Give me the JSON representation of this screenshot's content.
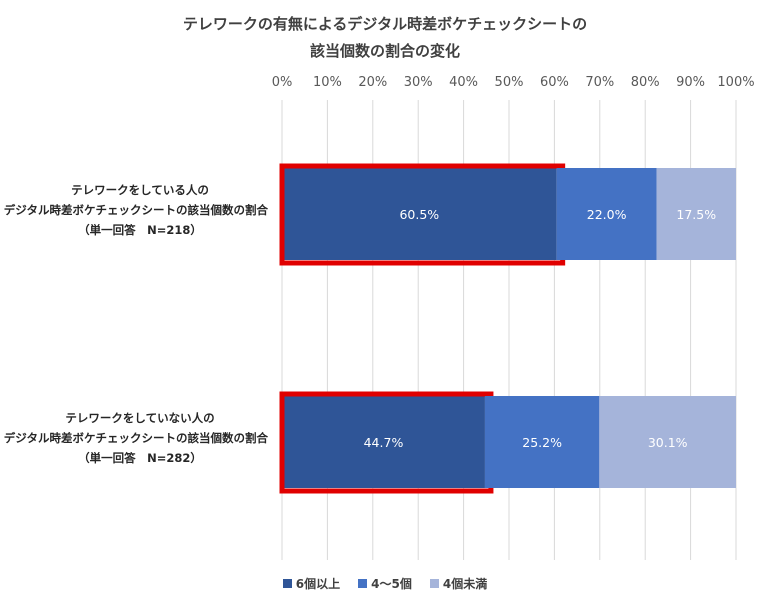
{
  "chart_data": {
    "type": "bar",
    "orientation": "horizontal",
    "stacked": "percent",
    "title_line1": "テレワークの有無によるデジタル時差ボケチェックシートの",
    "title_line2": "該当個数の割合の変化",
    "xlim": [
      0,
      100
    ],
    "x_ticks": [
      "0%",
      "10%",
      "20%",
      "30%",
      "40%",
      "50%",
      "60%",
      "70%",
      "80%",
      "90%",
      "100%"
    ],
    "grid": true,
    "legend_position": "bottom",
    "categories": [
      [
        "テレワークをしている人の",
        "デジタル時差ボケチェックシートの該当個数の割合",
        "（単一回答　N=218）"
      ],
      [
        "テレワークをしていない人の",
        "デジタル時差ボケチェックシートの該当個数の割合",
        "（単一回答　N=282）"
      ]
    ],
    "series": [
      {
        "name": "6個以上",
        "color": "#2f5597",
        "values": [
          60.5,
          44.7
        ],
        "labels": [
          "60.5%",
          "44.7%"
        ]
      },
      {
        "name": "4～5個",
        "color": "#4472c4",
        "values": [
          22.0,
          25.2
        ],
        "labels": [
          "22.0%",
          "25.2%"
        ]
      },
      {
        "name": "4個未満",
        "color": "#a5b4da",
        "values": [
          17.5,
          30.1
        ],
        "labels": [
          "17.5%",
          "30.1%"
        ]
      }
    ],
    "highlight": {
      "series": "6個以上",
      "color": "#e00000"
    }
  }
}
